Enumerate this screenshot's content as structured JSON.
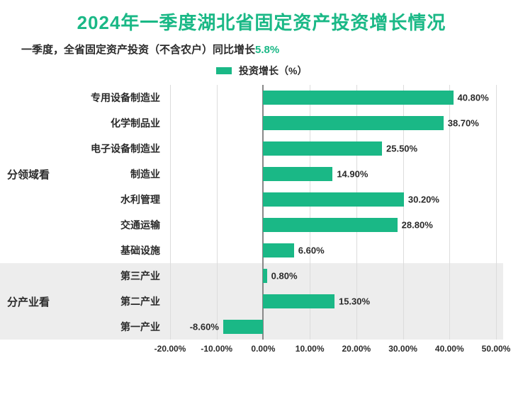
{
  "title": "2024年一季度湖北省固定资产投资增长情况",
  "title_color": "#1ab886",
  "title_fontsize": 26,
  "subtitle_prefix": "一季度，全省固定资产投资（不含农户）同比增长",
  "subtitle_highlight": "5.8%",
  "subtitle_fontsize": 15,
  "subtitle_color": "#2b2b2b",
  "highlight_color": "#1ab886",
  "legend": {
    "swatch_color": "#1ab886",
    "label": "投资增长（%）",
    "fontsize": 14,
    "text_color": "#2b2b2b"
  },
  "chart": {
    "type": "bar_horizontal",
    "bar_color": "#1ab886",
    "grid_color": "#dcdcdc",
    "zero_line_color": "#888888",
    "band_color": "#ededed",
    "label_color": "#2b2b2b",
    "category_fontsize": 14,
    "value_fontsize": 13,
    "group_fontsize": 15,
    "tick_fontsize": 12,
    "xmin": -20,
    "xmax": 50,
    "xtick_step": 10,
    "xticks": [
      {
        "v": -20,
        "label": "-20.00%"
      },
      {
        "v": -10,
        "label": "-10.00%"
      },
      {
        "v": 0,
        "label": "0.00%"
      },
      {
        "v": 10,
        "label": "10.00%"
      },
      {
        "v": 20,
        "label": "20.00%"
      },
      {
        "v": 30,
        "label": "30.00%"
      },
      {
        "v": 40,
        "label": "40.00%"
      },
      {
        "v": 50,
        "label": "50.00%"
      }
    ],
    "groups": [
      {
        "label": "分领域看",
        "row_start": 0,
        "row_end": 6,
        "banded": false,
        "rows": [
          {
            "category": "专用设备制造业",
            "value": 40.8,
            "value_label": "40.80%"
          },
          {
            "category": "化学制品业",
            "value": 38.7,
            "value_label": "38.70%"
          },
          {
            "category": "电子设备制造业",
            "value": 25.5,
            "value_label": "25.50%"
          },
          {
            "category": "制造业",
            "value": 14.9,
            "value_label": "14.90%"
          },
          {
            "category": "水利管理",
            "value": 30.2,
            "value_label": "30.20%"
          },
          {
            "category": "交通运输",
            "value": 28.8,
            "value_label": "28.80%"
          },
          {
            "category": "基础设施",
            "value": 6.6,
            "value_label": "6.60%"
          }
        ]
      },
      {
        "label": "分产业看",
        "row_start": 7,
        "row_end": 9,
        "banded": true,
        "rows": [
          {
            "category": "第三产业",
            "value": 0.8,
            "value_label": "0.80%"
          },
          {
            "category": "第二产业",
            "value": 15.3,
            "value_label": "15.30%"
          },
          {
            "category": "第一产业",
            "value": -8.6,
            "value_label": "-8.60%"
          }
        ]
      }
    ]
  }
}
